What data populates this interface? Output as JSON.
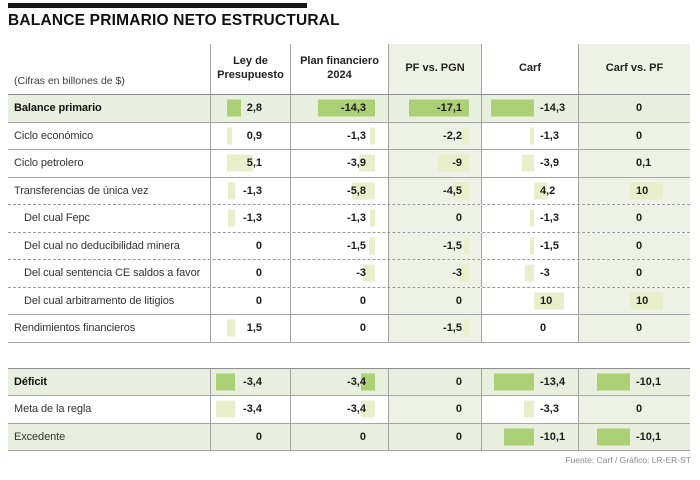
{
  "title": "BALANCE PRIMARIO NETO ESTRUCTURAL",
  "subtitle": "(Cifras en billones de $)",
  "source": "Fuente: Carf / Gráfico: LR-ER-ST",
  "colors": {
    "bar_strong": "#abd076",
    "bar_soft": "#eaefcb",
    "row_highlight": "#e9efdf",
    "column_tint": "#eef2e6",
    "border": "#a3a3a3",
    "title_rule": "#161616"
  },
  "chart_data": {
    "type": "table",
    "title": "BALANCE PRIMARIO NETO ESTRUCTURAL",
    "unit_note": "(Cifras en billones de $)",
    "columns": [
      {
        "label": "Ley de Presupuesto",
        "lines": [
          "Ley de",
          "Presupuesto"
        ],
        "tinted": false
      },
      {
        "label": "Plan financiero 2024",
        "lines": [
          "Plan financiero",
          "2024"
        ],
        "tinted": false
      },
      {
        "label": "PF vs. PGN",
        "lines": [
          "PF vs. PGN"
        ],
        "tinted": true
      },
      {
        "label": "Carf",
        "lines": [
          "Carf"
        ],
        "tinted": false
      },
      {
        "label": "Carf vs. PF",
        "lines": [
          "Carf vs. PF"
        ],
        "tinted": true
      }
    ],
    "sections": [
      {
        "rows": [
          {
            "label": "Balance primario",
            "bold": true,
            "highlight": true,
            "indent": false,
            "divider": "solid",
            "values": [
              "2,8",
              "-14,3",
              "-17,1",
              "-14,3",
              "0"
            ]
          },
          {
            "label": "Ciclo económico",
            "bold": false,
            "highlight": false,
            "indent": false,
            "divider": "solid",
            "values": [
              "0,9",
              "-1,3",
              "-2,2",
              "-1,3",
              "0"
            ]
          },
          {
            "label": "Ciclo petrolero",
            "bold": false,
            "highlight": false,
            "indent": false,
            "divider": "solid",
            "values": [
              "5,1",
              "-3,9",
              "-9",
              "-3,9",
              "0,1"
            ]
          },
          {
            "label": "Transferencias de única vez",
            "bold": false,
            "highlight": false,
            "indent": false,
            "divider": "dashed",
            "values": [
              "-1,3",
              "-5,8",
              "-4,5",
              "4,2",
              "10"
            ]
          },
          {
            "label": "Del cual Fepc",
            "bold": false,
            "highlight": false,
            "indent": true,
            "divider": "dashed",
            "values": [
              "-1,3",
              "-1,3",
              "0",
              "-1,3",
              "0"
            ]
          },
          {
            "label": "Del cual no deducibilidad minera",
            "bold": false,
            "highlight": false,
            "indent": true,
            "divider": "dashed",
            "values": [
              "0",
              "-1,5",
              "-1,5",
              "-1,5",
              "0"
            ]
          },
          {
            "label": "Del cual sentencia CE saldos a favor",
            "bold": false,
            "highlight": false,
            "indent": true,
            "divider": "dashed",
            "values": [
              "0",
              "-3",
              "-3",
              "-3",
              "0"
            ]
          },
          {
            "label": "Del cual arbitramento de litigios",
            "bold": false,
            "highlight": false,
            "indent": true,
            "divider": "solid",
            "values": [
              "0",
              "0",
              "0",
              "10",
              "10"
            ]
          },
          {
            "label": "Rendimientos financieros",
            "bold": false,
            "highlight": false,
            "indent": false,
            "divider": "solid",
            "values": [
              "1,5",
              "0",
              "-1,5",
              "0",
              "0"
            ]
          }
        ]
      },
      {
        "rows": [
          {
            "label": "Déficit",
            "bold": true,
            "highlight": true,
            "indent": false,
            "divider": "solid",
            "values": [
              "-3,4",
              "-3,4",
              "0",
              "-13,4",
              "-10,1"
            ]
          },
          {
            "label": "Meta de la regla",
            "bold": false,
            "highlight": false,
            "indent": false,
            "divider": "solid",
            "values": [
              "-3,4",
              "-3,4",
              "0",
              "-3,3",
              "0"
            ]
          },
          {
            "label": "Excedente",
            "bold": false,
            "highlight": true,
            "indent": false,
            "divider": "solid",
            "values": [
              "0",
              "0",
              "0",
              "-10,1",
              "-10,1"
            ]
          }
        ]
      }
    ]
  }
}
